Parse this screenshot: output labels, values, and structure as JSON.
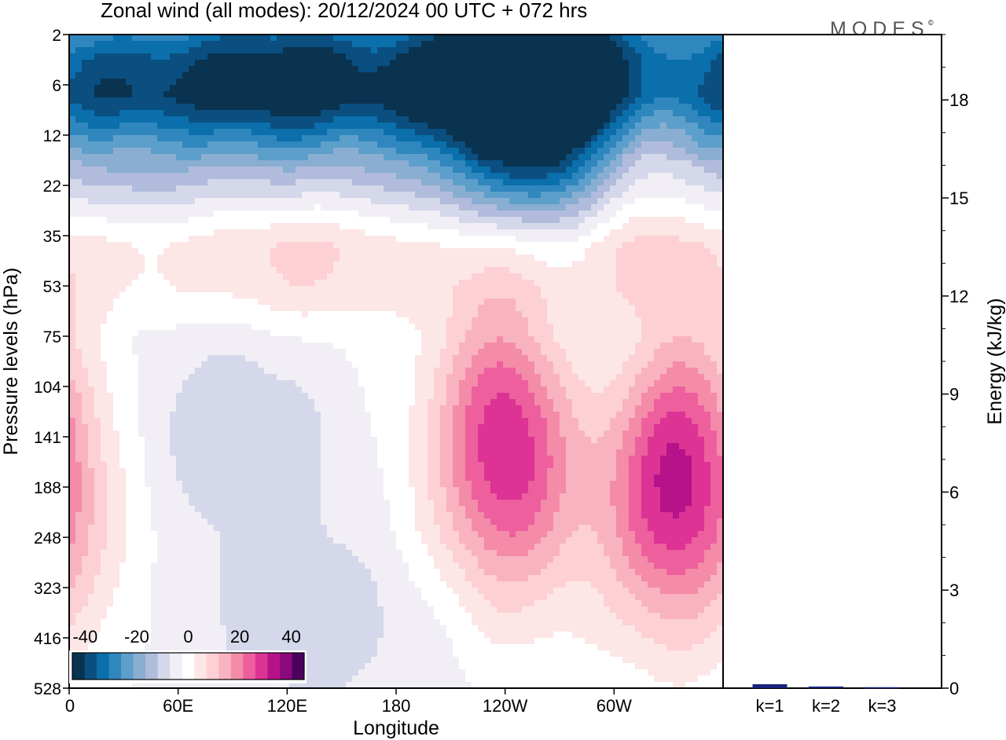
{
  "chart_data": [
    {
      "type": "heatmap",
      "title": "Zonal wind (all modes):  20/12/2024  00 UTC  + 072 hrs",
      "xlabel": "Longitude",
      "ylabel": "Pressure levels (hPa)",
      "x_ticks": [
        "0",
        "60E",
        "120E",
        "180",
        "120W",
        "60W"
      ],
      "y_ticks": [
        "2",
        "6",
        "12",
        "22",
        "35",
        "53",
        "75",
        "104",
        "141",
        "188",
        "248",
        "323",
        "416",
        "528"
      ],
      "colorbar": {
        "labels": [
          "-40",
          "-20",
          "0",
          "20",
          "40"
        ],
        "min": -45,
        "max": 45,
        "step": 5,
        "colors": [
          "#0a3350",
          "#0a4f80",
          "#0b6fab",
          "#2f87be",
          "#5d9fcb",
          "#8aaed2",
          "#b1bcdc",
          "#d4d8ea",
          "#f1eef6",
          "#ffffff",
          "#fde6e6",
          "#fcd0d4",
          "#f9b3c0",
          "#f48ba9",
          "#ee5f9d",
          "#dc3395",
          "#b8128a",
          "#8a0a7c",
          "#4d0060"
        ]
      },
      "features": [
        {
          "lon": 265,
          "level": 4,
          "value": -42
        },
        {
          "lon": 230,
          "level": 8,
          "value": -30
        },
        {
          "lon": 130,
          "level": 7,
          "value": -26
        },
        {
          "lon": 30,
          "level": 8,
          "value": -22
        },
        {
          "lon": 240,
          "level": 141,
          "value": 36
        },
        {
          "lon": 335,
          "level": 175,
          "value": 38
        },
        {
          "lon": 95,
          "level": 135,
          "value": -9
        },
        {
          "lon": 120,
          "level": 300,
          "value": -5
        },
        {
          "lon": 155,
          "level": 400,
          "value": -5
        },
        {
          "lon": 290,
          "level": 80,
          "value": -7
        },
        {
          "lon": 120,
          "level": 40,
          "value": 8
        },
        {
          "lon": 300,
          "level": 40,
          "value": 8
        }
      ]
    },
    {
      "type": "bar",
      "ylabel": "Energy (kJ/kg)",
      "categories": [
        "k=1",
        "k=2",
        "k=3"
      ],
      "values": [
        0.12,
        0.05,
        0.03
      ],
      "ylim": [
        0,
        20
      ],
      "y_ticks": [
        "0",
        "3",
        "6",
        "9",
        "12",
        "15",
        "18"
      ],
      "bar_color": "#1a237e"
    }
  ],
  "logo": {
    "text": "MODES",
    "mark": "©"
  }
}
